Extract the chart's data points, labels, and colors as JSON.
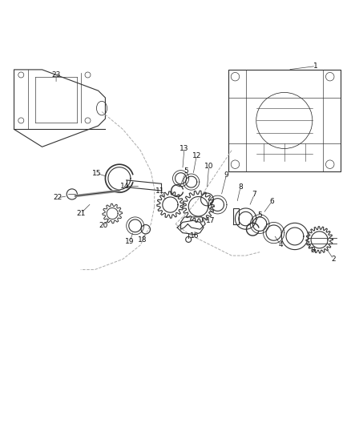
{
  "title": "",
  "background_color": "#ffffff",
  "figure_width": 4.38,
  "figure_height": 5.33,
  "dpi": 100,
  "line_color": "#333333",
  "label_color": "#111111",
  "dashed_color": "#aaaaaa",
  "label_fontsize": 6.5
}
